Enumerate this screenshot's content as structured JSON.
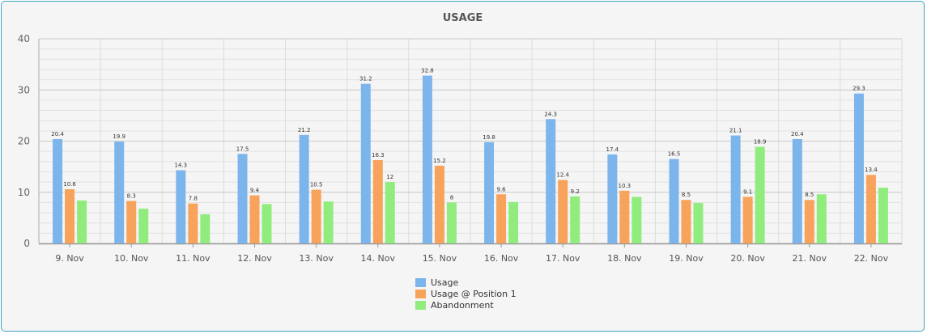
{
  "chart_data": {
    "type": "bar",
    "title": "USAGE",
    "xlabel": "",
    "ylabel": "",
    "ylim": [
      0,
      40
    ],
    "yticks": [
      "0",
      "10",
      "20",
      "30",
      "40"
    ],
    "grid": true,
    "legend_position": "bottom-center",
    "categories": [
      "9. Nov",
      "10. Nov",
      "11. Nov",
      "12. Nov",
      "13. Nov",
      "14. Nov",
      "15. Nov",
      "16. Nov",
      "17. Nov",
      "18. Nov",
      "19. Nov",
      "20. Nov",
      "21. Nov",
      "22. Nov"
    ],
    "series": [
      {
        "name": "Usage",
        "color": "#7cb5ec",
        "values": [
          20.4,
          19.9,
          14.3,
          17.5,
          21.2,
          31.2,
          32.8,
          19.8,
          24.3,
          17.4,
          16.5,
          21.1,
          20.4,
          29.3
        ],
        "labels": [
          "20.4",
          "19.9",
          "14.3",
          "17.5",
          "21.2",
          "31.2",
          "32.8",
          "19.8",
          "24.3",
          "17.4",
          "16.5",
          "21.1",
          "20.4",
          "29.3"
        ]
      },
      {
        "name": "Usage @ Position 1",
        "color": "#f7a35c",
        "values": [
          10.6,
          8.3,
          7.8,
          9.4,
          10.5,
          16.3,
          15.2,
          9.6,
          12.4,
          10.3,
          8.5,
          9.1,
          8.5,
          13.4
        ],
        "labels": [
          "10.6",
          "8.3",
          "7.8",
          "9.4",
          "10.5",
          "16.3",
          "15.2",
          "9.6",
          "12.4",
          "10.3",
          "8.5",
          "9.1",
          "8.5",
          "13.4"
        ]
      },
      {
        "name": "Abandonment",
        "color": "#90ed7d",
        "values": [
          8.4,
          6.8,
          5.7,
          7.7,
          8.2,
          12,
          8,
          8.1,
          9.2,
          9.1,
          7.9,
          18.9,
          9.6,
          10.9
        ],
        "labels": [
          "",
          "",
          "",
          "",
          "",
          "12",
          "8",
          "",
          "9.2",
          "",
          "",
          "18.9",
          "",
          ""
        ]
      }
    ]
  }
}
